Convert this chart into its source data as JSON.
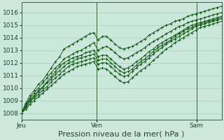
{
  "bg_color": "#cce8dd",
  "grid_color": "#aacfbf",
  "line_color": "#1a5c1a",
  "marker_color": "#1a5c1a",
  "ylabel_ticks": [
    1008,
    1009,
    1010,
    1011,
    1012,
    1013,
    1014,
    1015,
    1016
  ],
  "xlim": [
    0,
    48
  ],
  "ylim": [
    1007.5,
    1016.8
  ],
  "xlabel": "Pression niveau de la mer( hPa )",
  "xtick_positions": [
    0,
    18,
    42
  ],
  "xtick_labels": [
    "Jeu",
    "Ven",
    "Sam"
  ],
  "vlines": [
    18,
    42
  ],
  "xlabel_fontsize": 8,
  "series": [
    [
      1008.0,
      1008.8,
      1009.4,
      1009.8,
      1010.3,
      1010.6,
      1011.1,
      1011.6,
      1012.1,
      1012.5,
      1013.1,
      1013.3,
      1013.5,
      1013.7,
      1013.9,
      1014.1,
      1014.3,
      1014.4,
      1013.8,
      1014.1,
      1014.1,
      1013.8,
      1013.5,
      1013.2,
      1013.1,
      1013.2,
      1013.3,
      1013.5,
      1013.7,
      1013.9,
      1014.2,
      1014.4,
      1014.6,
      1014.8,
      1015.0,
      1015.1,
      1015.3,
      1015.4,
      1015.5,
      1015.7,
      1015.8,
      1015.9,
      1016.0,
      1016.1,
      1016.2,
      1016.3,
      1016.4,
      1016.5
    ],
    [
      1008.0,
      1008.7,
      1009.2,
      1009.6,
      1010.0,
      1010.4,
      1010.8,
      1011.2,
      1011.6,
      1011.9,
      1012.3,
      1012.5,
      1012.7,
      1012.9,
      1013.0,
      1013.2,
      1013.4,
      1013.6,
      1013.0,
      1013.2,
      1013.3,
      1013.1,
      1012.8,
      1012.5,
      1012.3,
      1012.4,
      1012.6,
      1012.8,
      1013.0,
      1013.2,
      1013.5,
      1013.7,
      1013.9,
      1014.1,
      1014.3,
      1014.5,
      1014.7,
      1014.9,
      1015.0,
      1015.2,
      1015.3,
      1015.4,
      1015.5,
      1015.6,
      1015.7,
      1015.8,
      1015.9,
      1016.0
    ],
    [
      1008.0,
      1008.6,
      1009.1,
      1009.4,
      1009.8,
      1010.1,
      1010.5,
      1010.9,
      1011.3,
      1011.7,
      1012.0,
      1012.2,
      1012.4,
      1012.5,
      1012.6,
      1012.8,
      1012.9,
      1013.0,
      1012.5,
      1012.6,
      1012.6,
      1012.3,
      1012.0,
      1011.7,
      1011.5,
      1011.6,
      1011.8,
      1012.1,
      1012.3,
      1012.6,
      1012.9,
      1013.1,
      1013.4,
      1013.6,
      1013.8,
      1014.0,
      1014.2,
      1014.4,
      1014.6,
      1014.8,
      1015.0,
      1015.1,
      1015.2,
      1015.3,
      1015.4,
      1015.5,
      1015.6,
      1015.7
    ],
    [
      1008.0,
      1008.5,
      1009.0,
      1009.3,
      1009.7,
      1010.0,
      1010.4,
      1010.7,
      1011.1,
      1011.4,
      1011.7,
      1012.0,
      1012.1,
      1012.3,
      1012.4,
      1012.5,
      1012.6,
      1012.7,
      1012.2,
      1012.3,
      1012.3,
      1012.0,
      1011.7,
      1011.4,
      1011.2,
      1011.3,
      1011.5,
      1011.8,
      1012.1,
      1012.3,
      1012.6,
      1012.9,
      1013.2,
      1013.4,
      1013.6,
      1013.8,
      1014.1,
      1014.3,
      1014.5,
      1014.7,
      1014.8,
      1015.0,
      1015.1,
      1015.2,
      1015.3,
      1015.4,
      1015.5,
      1015.6
    ],
    [
      1008.0,
      1008.4,
      1008.9,
      1009.2,
      1009.5,
      1009.8,
      1010.1,
      1010.5,
      1010.8,
      1011.1,
      1011.4,
      1011.7,
      1011.9,
      1012.0,
      1012.1,
      1012.2,
      1012.3,
      1012.4,
      1011.9,
      1012.0,
      1012.0,
      1011.7,
      1011.4,
      1011.1,
      1010.9,
      1011.0,
      1011.3,
      1011.6,
      1011.9,
      1012.1,
      1012.4,
      1012.7,
      1013.0,
      1013.2,
      1013.5,
      1013.7,
      1013.9,
      1014.1,
      1014.3,
      1014.5,
      1014.7,
      1014.9,
      1015.0,
      1015.1,
      1015.2,
      1015.3,
      1015.4,
      1015.5
    ],
    [
      1008.0,
      1008.3,
      1008.7,
      1009.0,
      1009.3,
      1009.6,
      1009.9,
      1010.2,
      1010.5,
      1010.8,
      1011.1,
      1011.3,
      1011.5,
      1011.7,
      1011.8,
      1011.9,
      1012.0,
      1012.1,
      1011.5,
      1011.6,
      1011.5,
      1011.2,
      1010.9,
      1010.6,
      1010.4,
      1010.5,
      1010.8,
      1011.1,
      1011.4,
      1011.6,
      1011.9,
      1012.2,
      1012.5,
      1012.8,
      1013.1,
      1013.3,
      1013.6,
      1013.8,
      1014.0,
      1014.2,
      1014.4,
      1014.6,
      1014.8,
      1014.9,
      1015.0,
      1015.1,
      1015.2,
      1015.3
    ]
  ]
}
